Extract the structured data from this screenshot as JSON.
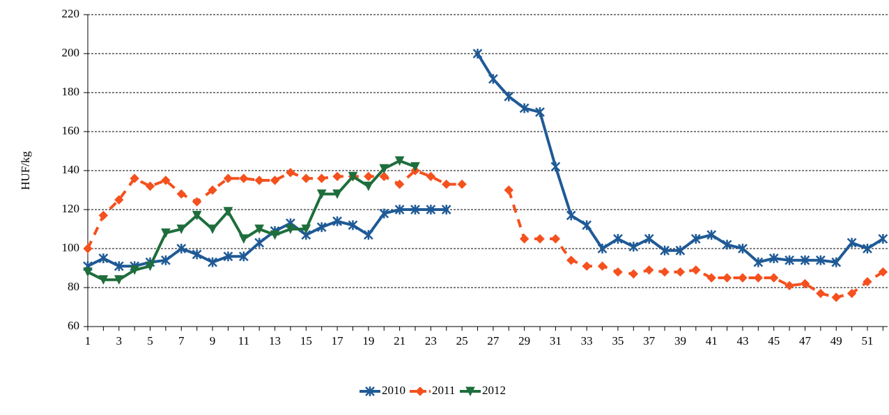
{
  "chart_data": {
    "type": "line",
    "y_label": "HUF/kg",
    "categories": [
      "1",
      null,
      "3",
      null,
      "5",
      null,
      "7",
      null,
      "9",
      null,
      "11",
      null,
      "13",
      null,
      "15",
      null,
      "17",
      null,
      "19",
      null,
      "21",
      null,
      "23",
      null,
      "25",
      null,
      "27",
      null,
      "29",
      null,
      "31",
      null,
      "33",
      null,
      "35",
      null,
      "37",
      null,
      "39",
      null,
      "41",
      null,
      "43",
      null,
      "45",
      null,
      "47",
      null,
      "49",
      null,
      "51",
      null
    ],
    "series": [
      {
        "name": "2010",
        "color": "#1f5a96",
        "marker": "star",
        "dashed": false,
        "values": [
          91,
          95,
          91,
          91,
          93,
          94,
          100,
          97,
          93,
          96,
          96,
          103,
          109,
          113,
          107,
          111,
          114,
          112,
          107,
          118,
          120,
          120,
          120,
          120,
          null,
          200,
          187,
          178,
          172,
          170,
          142,
          117,
          112,
          100,
          105,
          101,
          105,
          99,
          99,
          105,
          107,
          102,
          100,
          93,
          95,
          94,
          94,
          94,
          93,
          103,
          100,
          105
        ]
      },
      {
        "name": "2011",
        "color": "#f4511e",
        "marker": "diamond",
        "dashed": true,
        "values": [
          100,
          117,
          125,
          136,
          132,
          135,
          128,
          124,
          130,
          136,
          136,
          135,
          135,
          139,
          136,
          136,
          137,
          137,
          137,
          137,
          133,
          140,
          137,
          133,
          133,
          null,
          null,
          130,
          105,
          105,
          105,
          94,
          91,
          91,
          88,
          87,
          89,
          88,
          88,
          89,
          85,
          85,
          85,
          85,
          85,
          81,
          82,
          77,
          75,
          77,
          83,
          88
        ]
      },
      {
        "name": "2012",
        "color": "#1e6e3c",
        "marker": "triangle-down",
        "dashed": false,
        "values": [
          88,
          84,
          84,
          89,
          91,
          108,
          110,
          117,
          110,
          119,
          105,
          110,
          107,
          110,
          110,
          128,
          128,
          137,
          132,
          141,
          145,
          142,
          null,
          null,
          null,
          null,
          null,
          null,
          null,
          null,
          null,
          null,
          null,
          null,
          null,
          null,
          null,
          null,
          null,
          null,
          null,
          null,
          null,
          null,
          null,
          null,
          null,
          null,
          null,
          null,
          null,
          null
        ]
      }
    ],
    "ylim": [
      60,
      220
    ],
    "yticks": [
      60,
      80,
      100,
      120,
      140,
      160,
      180,
      200,
      220
    ],
    "grid": true,
    "legend": "bottom"
  }
}
